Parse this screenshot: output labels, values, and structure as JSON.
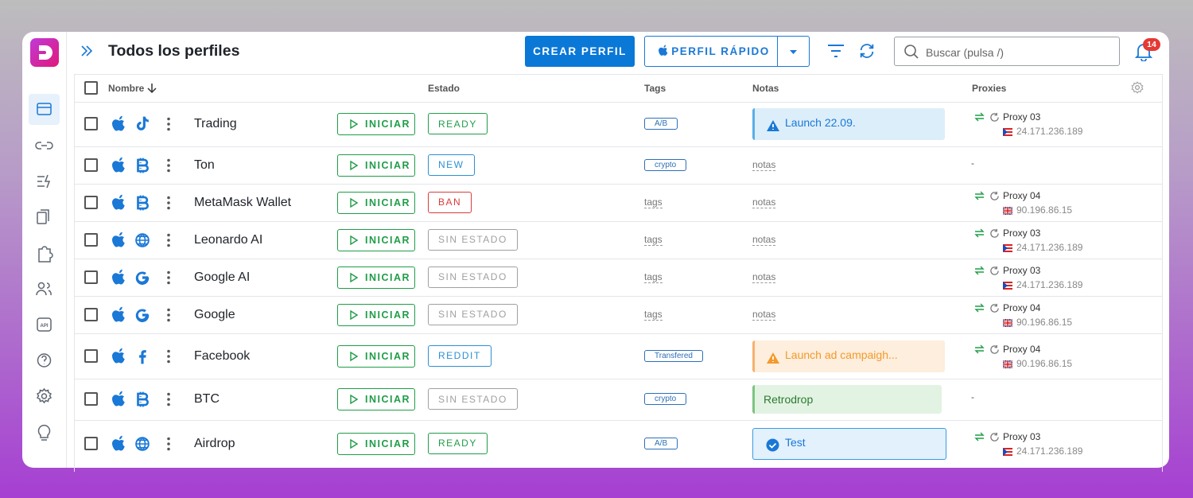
{
  "header": {
    "title": "Todos los perfiles",
    "create_button": "CREAR PERFIL",
    "quick_button": "PERFIL RÁPIDO",
    "search_placeholder": "Buscar (pulsa /)",
    "notifications": 14
  },
  "table": {
    "columns": {
      "name": "Nombre",
      "status": "Estado",
      "tags": "Tags",
      "notes": "Notas",
      "proxies": "Proxies"
    },
    "rows": [
      {
        "name": "Trading",
        "action": "INICIAR",
        "status": "READY",
        "tag": "A/B",
        "note": "Launch 22.09.",
        "proxy": "Proxy 03",
        "ip": "24.171.236.189"
      },
      {
        "name": "Ton",
        "action": "INICIAR",
        "status": "NEW",
        "tag": "crypto",
        "note": "notas",
        "proxy": "-"
      },
      {
        "name": "MetaMask Wallet",
        "action": "INICIAR",
        "status": "BAN",
        "tag": "tags",
        "note": "notas",
        "proxy": "Proxy 04",
        "ip": "90.196.86.15"
      },
      {
        "name": "Leonardo AI",
        "action": "INICIAR",
        "status": "SIN ESTADO",
        "tag": "tags",
        "note": "notas",
        "proxy": "Proxy 03",
        "ip": "24.171.236.189"
      },
      {
        "name": "Google AI",
        "action": "INICIAR",
        "status": "SIN ESTADO",
        "tag": "tags",
        "note": "notas",
        "proxy": "Proxy 03",
        "ip": "24.171.236.189"
      },
      {
        "name": "Google",
        "action": "INICIAR",
        "status": "SIN ESTADO",
        "tag": "tags",
        "note": "notas",
        "proxy": "Proxy 04",
        "ip": "90.196.86.15"
      },
      {
        "name": "Facebook",
        "action": "INICIAR",
        "status": "REDDIT",
        "tag": "Transfered",
        "note": "Launch ad campaigh...",
        "proxy": "Proxy 04",
        "ip": "90.196.86.15"
      },
      {
        "name": "BTC",
        "action": "INICIAR",
        "status": "SIN ESTADO",
        "tag": "crypto",
        "note": "Retrodrop",
        "proxy": "-"
      },
      {
        "name": "Airdrop",
        "action": "INICIAR",
        "status": "READY",
        "tag": "A/B",
        "note": "Test",
        "proxy": "Proxy 03",
        "ip": "24.171.236.189"
      }
    ]
  }
}
